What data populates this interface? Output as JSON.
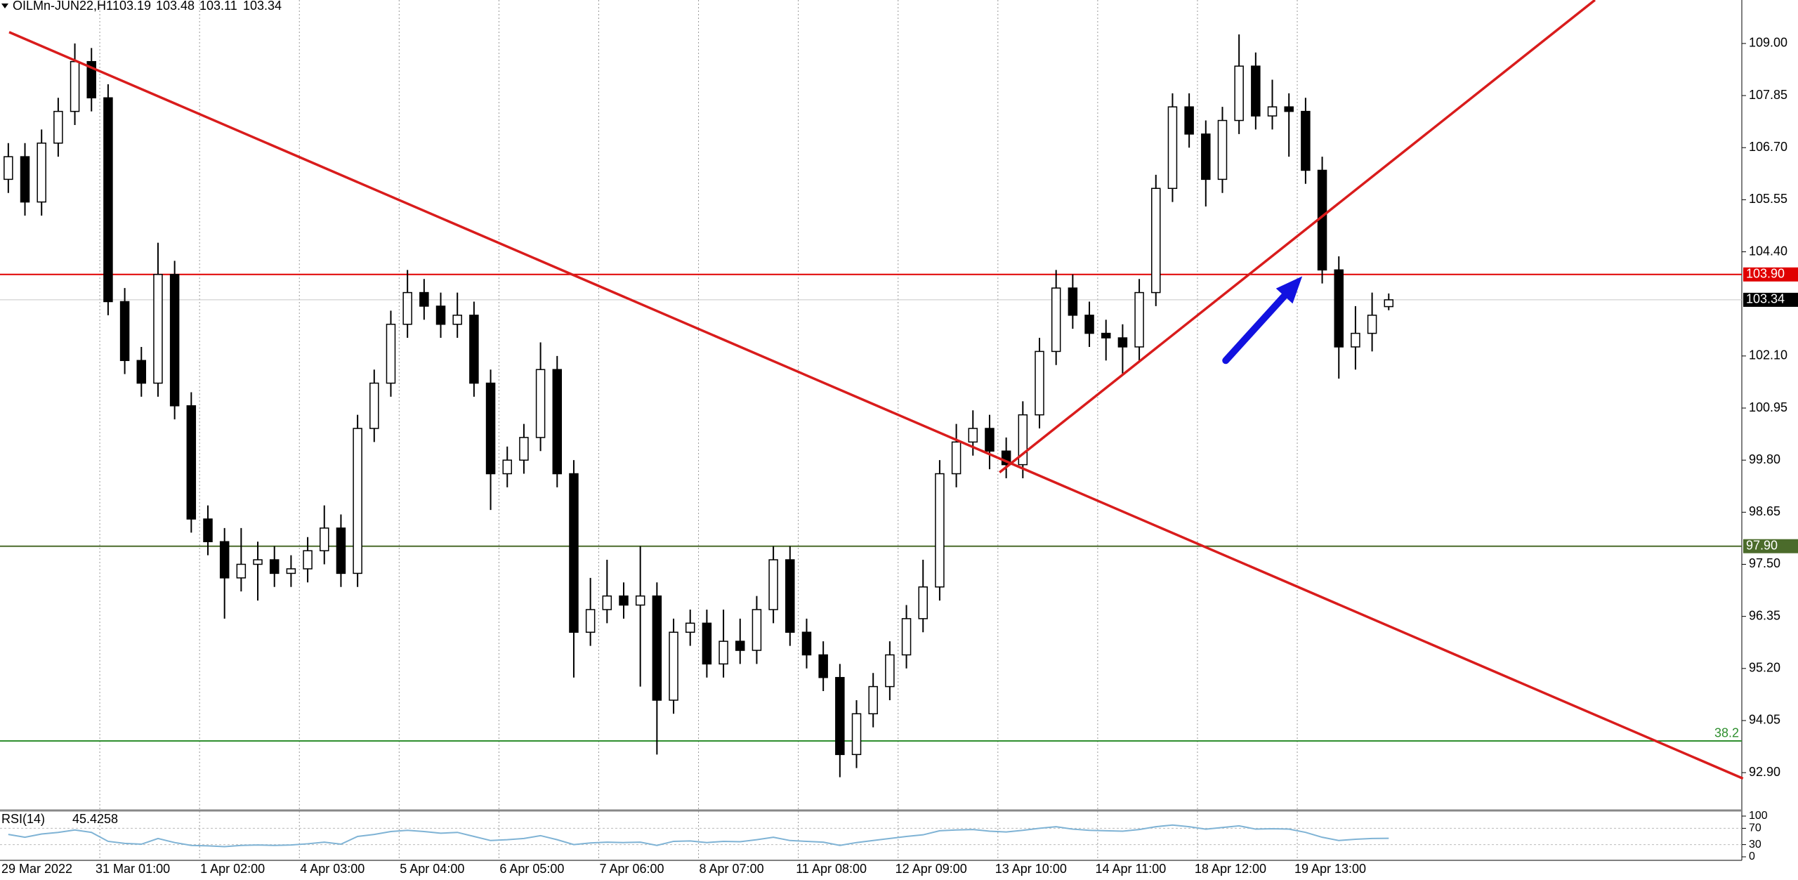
{
  "chart_data": {
    "type": "candlestick",
    "title": "OILMn-JUN22,H1",
    "categories": [
      "29 Mar 2022",
      null,
      null,
      null,
      null,
      null,
      "31 Mar 01:00",
      null,
      null,
      null,
      null,
      null,
      "1 Apr 02:00",
      null,
      null,
      null,
      null,
      null,
      "4 Apr 03:00",
      null,
      null,
      null,
      null,
      null,
      "5 Apr 04:00",
      null,
      null,
      null,
      null,
      null,
      "6 Apr 05:00",
      null,
      null,
      null,
      null,
      null,
      "7 Apr 06:00",
      null,
      null,
      null,
      null,
      null,
      "8 Apr 07:00",
      null,
      null,
      null,
      null,
      null,
      "11 Apr 08:00",
      null,
      null,
      null,
      null,
      null,
      "12 Apr 09:00",
      null,
      null,
      null,
      null,
      null,
      "13 Apr 10:00",
      null,
      null,
      null,
      null,
      null,
      "14 Apr 11:00",
      null,
      null,
      null,
      null,
      null,
      "18 Apr 12:00",
      null,
      null,
      null,
      null,
      null,
      "19 Apr 13:00",
      null,
      null,
      null,
      null,
      null
    ],
    "open": [
      106.0,
      106.5,
      105.5,
      106.8,
      107.5,
      108.6,
      107.8,
      103.3,
      102.0,
      101.5,
      103.9,
      101.0,
      98.5,
      98.0,
      97.2,
      97.5,
      97.6,
      97.3,
      97.4,
      97.8,
      98.3,
      97.3,
      100.5,
      101.5,
      102.8,
      103.5,
      103.2,
      102.8,
      103.0,
      101.5,
      99.5,
      99.8,
      100.3,
      101.8,
      99.5,
      96.0,
      96.5,
      96.8,
      96.6,
      96.8,
      94.5,
      96.0,
      96.2,
      95.3,
      95.8,
      95.6,
      96.5,
      97.6,
      96.0,
      95.5,
      95.0,
      93.3,
      94.2,
      94.8,
      95.5,
      96.3,
      97.0,
      99.5,
      100.2,
      100.5,
      100.0,
      99.7,
      100.8,
      102.2,
      103.6,
      103.0,
      102.6,
      102.5,
      102.3,
      103.5,
      105.8,
      107.6,
      107.0,
      106.0,
      107.3,
      108.5,
      107.4,
      107.6,
      107.5,
      106.2,
      104.0,
      102.3,
      102.6,
      103.19
    ],
    "high": [
      106.8,
      106.8,
      107.1,
      107.8,
      109.0,
      108.9,
      108.1,
      103.6,
      102.3,
      104.6,
      104.2,
      101.3,
      98.8,
      98.3,
      98.3,
      98.0,
      97.9,
      97.7,
      98.1,
      98.8,
      98.6,
      100.8,
      101.8,
      103.1,
      104.0,
      103.8,
      103.5,
      103.5,
      103.3,
      101.8,
      100.1,
      100.6,
      102.4,
      102.1,
      99.8,
      97.2,
      97.6,
      97.1,
      97.9,
      97.1,
      96.3,
      96.5,
      96.5,
      96.5,
      96.3,
      96.8,
      97.9,
      97.9,
      96.3,
      95.8,
      95.3,
      94.5,
      95.1,
      95.8,
      96.6,
      97.6,
      99.8,
      100.6,
      100.9,
      100.8,
      100.3,
      101.1,
      102.5,
      104.0,
      103.9,
      103.3,
      102.9,
      102.8,
      103.8,
      106.1,
      107.9,
      107.9,
      107.3,
      107.6,
      109.2,
      108.8,
      108.2,
      107.9,
      107.8,
      106.5,
      104.3,
      103.2,
      103.5,
      103.48
    ],
    "low": [
      105.7,
      105.2,
      105.2,
      106.5,
      107.2,
      107.5,
      103.0,
      101.7,
      101.2,
      101.2,
      100.7,
      98.2,
      97.7,
      96.3,
      96.9,
      96.7,
      97.0,
      97.0,
      97.1,
      97.5,
      97.0,
      97.0,
      100.2,
      101.2,
      102.5,
      102.9,
      102.5,
      102.5,
      101.2,
      98.7,
      99.2,
      99.5,
      100.0,
      99.2,
      95.0,
      95.7,
      96.2,
      96.3,
      94.8,
      93.3,
      94.2,
      95.7,
      95.0,
      95.0,
      95.3,
      95.3,
      96.2,
      95.7,
      95.2,
      94.7,
      92.8,
      93.0,
      93.9,
      94.5,
      95.2,
      96.0,
      96.7,
      99.2,
      99.9,
      99.6,
      99.4,
      99.4,
      100.5,
      101.9,
      102.7,
      102.3,
      102.0,
      101.7,
      102.0,
      103.2,
      105.5,
      106.7,
      105.4,
      105.7,
      107.0,
      107.1,
      107.1,
      106.5,
      105.9,
      103.7,
      101.6,
      101.8,
      102.2,
      103.11
    ],
    "close": [
      106.5,
      105.5,
      106.8,
      107.5,
      108.6,
      107.8,
      103.3,
      102.0,
      101.5,
      103.9,
      101.0,
      98.5,
      98.0,
      97.2,
      97.5,
      97.6,
      97.3,
      97.4,
      97.8,
      98.3,
      97.3,
      100.5,
      101.5,
      102.8,
      103.5,
      103.2,
      102.8,
      103.0,
      101.5,
      99.5,
      99.8,
      100.3,
      101.8,
      99.5,
      96.0,
      96.5,
      96.8,
      96.6,
      96.8,
      94.5,
      96.0,
      96.2,
      95.3,
      95.8,
      95.6,
      96.5,
      97.6,
      96.0,
      95.5,
      95.0,
      93.3,
      94.2,
      94.8,
      95.5,
      96.3,
      97.0,
      99.5,
      100.2,
      100.5,
      100.0,
      99.7,
      100.8,
      102.2,
      103.6,
      103.0,
      102.6,
      102.5,
      102.3,
      103.5,
      105.8,
      107.6,
      107.0,
      106.0,
      107.3,
      108.5,
      107.4,
      107.6,
      107.5,
      106.2,
      104.0,
      102.3,
      102.6,
      103.0,
      103.34
    ],
    "ylim": [
      92.08,
      109.96
    ],
    "yticks": [
      {
        "value": 109,
        "label": "109.00"
      },
      107.85,
      {
        "value": 106.7,
        "label": "106.70"
      },
      105.55,
      {
        "value": 104.4,
        "label": "104.40"
      },
      {
        "value": 102.1,
        "label": "102.10"
      },
      100.95,
      {
        "value": 99.8,
        "label": "99.80"
      },
      98.65,
      {
        "value": 97.5,
        "label": "97.50"
      },
      96.35,
      {
        "value": 95.2,
        "label": "95.20"
      },
      94.05,
      {
        "value": 92.9,
        "label": "92.90"
      }
    ],
    "levels": [
      {
        "value": 103.9,
        "label": "103.90",
        "color": "#e00000"
      },
      {
        "value": 97.9,
        "label": "97.90",
        "color": "#4b6b2b"
      }
    ],
    "fib_level": {
      "price": 93.6,
      "label": "38.2",
      "color": "#2f8f2f"
    },
    "trend_lines": [
      {
        "x": [
          0.55,
          104.8
        ],
        "y": [
          109.25,
          92.77
        ],
        "color": "#d91c1c"
      },
      {
        "x": [
          60.1,
          95.9
        ],
        "y": [
          99.53,
          109.96
        ],
        "color": "#d91c1c"
      }
    ],
    "arrow": {
      "x": [
        73.7,
        78.3
      ],
      "y": [
        102.0,
        103.86
      ],
      "color": "#1212e0"
    },
    "grid": true,
    "indicator": {
      "name": "RSI(14)",
      "color": "#7fb3d5",
      "ylim": [
        0,
        100
      ],
      "yticks": [
        100,
        70,
        30,
        0
      ],
      "values": [
        55,
        48,
        56,
        60,
        66,
        60,
        38,
        33,
        31,
        45,
        35,
        28,
        27,
        25,
        28,
        29,
        28,
        29,
        32,
        36,
        31,
        50,
        55,
        62,
        65,
        62,
        58,
        60,
        50,
        40,
        42,
        45,
        52,
        42,
        30,
        34,
        36,
        35,
        36,
        28,
        38,
        39,
        35,
        38,
        37,
        42,
        48,
        40,
        38,
        36,
        28,
        35,
        40,
        45,
        50,
        54,
        64,
        66,
        67,
        63,
        61,
        65,
        70,
        74,
        68,
        65,
        64,
        63,
        67,
        74,
        78,
        74,
        68,
        72,
        76,
        68,
        69,
        68,
        60,
        48,
        40,
        43,
        45,
        45.4258
      ]
    }
  }
}
